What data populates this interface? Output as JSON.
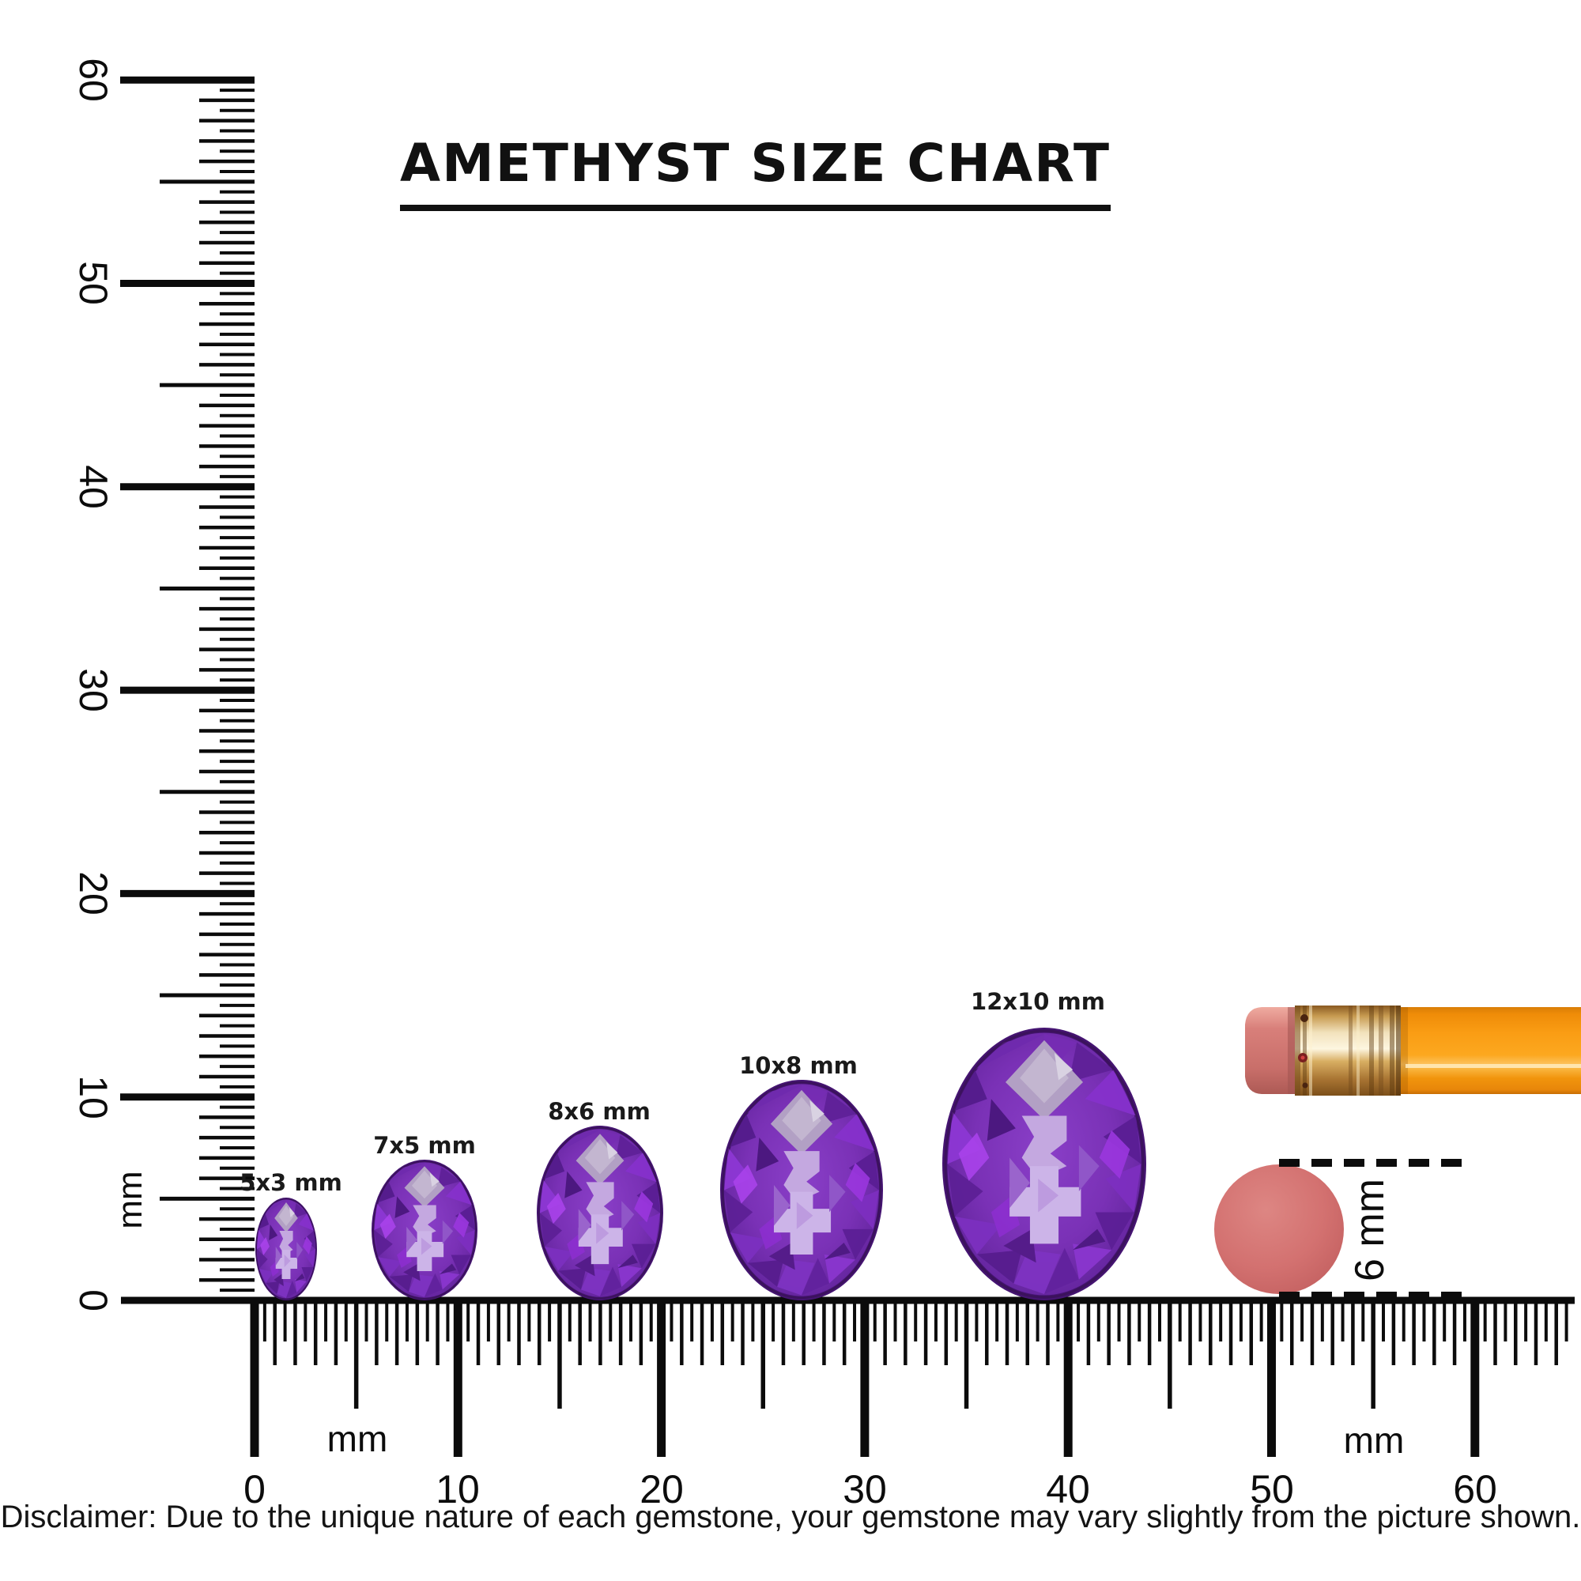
{
  "title": {
    "text": "AMETHYST SIZE CHART"
  },
  "gems": [
    {
      "label": "5x3 mm",
      "height_mm": 5,
      "width_mm": 3,
      "shape": "oval",
      "stone": "amethyst"
    },
    {
      "label": "7x5 mm",
      "height_mm": 7,
      "width_mm": 5,
      "shape": "oval",
      "stone": "amethyst"
    },
    {
      "label": "8x6 mm",
      "height_mm": 8,
      "width_mm": 6,
      "shape": "oval",
      "stone": "amethyst"
    },
    {
      "label": "10x8 mm",
      "height_mm": 10,
      "width_mm": 8,
      "shape": "oval",
      "stone": "amethyst"
    },
    {
      "label": "12x10 mm",
      "height_mm": 12,
      "width_mm": 10,
      "shape": "oval",
      "stone": "amethyst"
    }
  ],
  "rulers": {
    "unit": "mm",
    "vertical": {
      "min": 0,
      "max": 60,
      "tick_step_mm": 0.5,
      "labels": [
        "60",
        "50",
        "40",
        "30",
        "20",
        "10",
        "0"
      ],
      "unit_label": "mm"
    },
    "horizontal": {
      "min": 0,
      "max": 60,
      "tick_step_mm": 0.5,
      "labels": [
        "0",
        "10",
        "20",
        "30",
        "40",
        "50",
        "60"
      ],
      "unit_label_left": "mm",
      "unit_label_right": "mm"
    }
  },
  "reference_objects": {
    "pencil": {
      "name": "pencil with eraser and ferrule",
      "body_color": "#f9980e",
      "eraser_color": "#d87f7a",
      "ferrule_color": "#d8a855"
    },
    "eraser_disc": {
      "size_label": "6 mm",
      "color": "#d37170"
    }
  },
  "disclaimer": "Disclaimer: Due to the unique nature of each gemstone, your gemstone may vary slightly from the picture shown.",
  "colors": {
    "gem_dark": "#4c187e",
    "gem_mid": "#7a31b6",
    "gem_vivid": "#8d37d4",
    "gem_light_facet": "#ccb4e8",
    "gem_top_facet": "#b2a0c4",
    "ink": "#0c0c0c",
    "background": "#ffffff"
  }
}
